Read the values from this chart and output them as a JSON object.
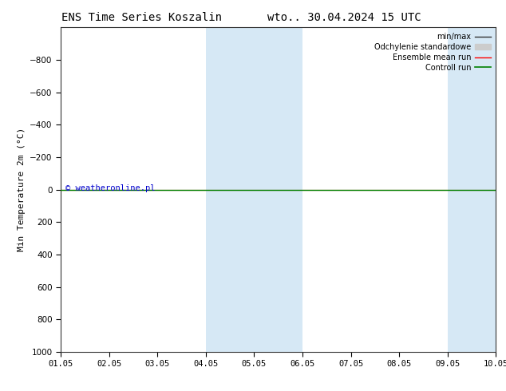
{
  "title_left": "ENS Time Series Koszalin",
  "title_right": "wto.. 30.04.2024 15 UTC",
  "ylabel": "Min Temperature 2m (°C)",
  "ylim_bottom": 1000,
  "ylim_top": -1000,
  "yticks": [
    -800,
    -600,
    -400,
    -200,
    0,
    200,
    400,
    600,
    800,
    1000
  ],
  "x_start": 0,
  "x_end": 9,
  "xtick_positions": [
    0,
    1,
    2,
    3,
    4,
    5,
    6,
    7,
    8,
    9
  ],
  "xtick_labels": [
    "01.05",
    "02.05",
    "03.05",
    "04.05",
    "05.05",
    "06.05",
    "07.05",
    "08.05",
    "09.05",
    "10.05"
  ],
  "blue_bands": [
    [
      3.0,
      4.0
    ],
    [
      4.0,
      5.0
    ],
    [
      8.0,
      8.5
    ],
    [
      8.5,
      9.0
    ]
  ],
  "blue_band_color": "#d6e8f5",
  "green_line_color": "#008000",
  "red_line_color": "#ff0000",
  "min_max_color": "#333333",
  "std_fill_color": "#cccccc",
  "copyright_text": "© weatheronline.pl",
  "copyright_color": "#0000cc",
  "bg_color": "#ffffff",
  "spine_color": "#333333",
  "title_fontsize": 10,
  "tick_fontsize": 7.5,
  "ylabel_fontsize": 8,
  "legend_fontsize": 7
}
